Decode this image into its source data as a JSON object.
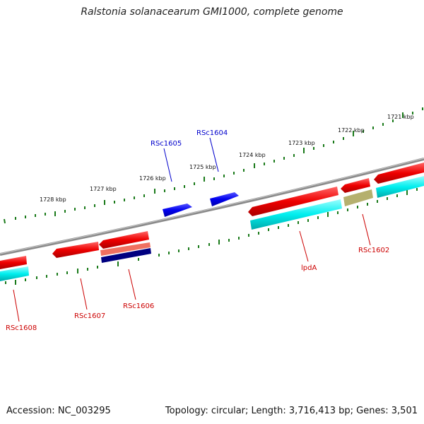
{
  "title": "Ralstonia solanacearum GMI1000, complete genome",
  "footer": {
    "accession": "Accession: NC_003295",
    "summary": "Topology: circular; Length: 3,716,413 bp; Genes: 3,501"
  },
  "ticks": [
    "1721 kbp",
    "1722 kbp",
    "1723 kbp",
    "1724 kbp",
    "1725 kbp",
    "1726 kbp",
    "1727 kbp",
    "1728 kbp"
  ],
  "labels": {
    "top": [
      "RSc1605",
      "RSc1604"
    ],
    "bottom": [
      "RSc1602",
      "lpdA",
      "RSc1606",
      "RSc1607",
      "RSc1608"
    ]
  },
  "colors": {
    "gene_red": "#ee0000",
    "gene_blue": "#0000ee",
    "gene_cyan": "#00e5ee",
    "gene_olive": "#b5b06e",
    "gene_salmon": "#f07060",
    "gene_navy": "#000080",
    "backbone": "#888888",
    "tick": "#1a7a1a",
    "label_red": "#cc0000",
    "label_blue": "#0000cc"
  }
}
